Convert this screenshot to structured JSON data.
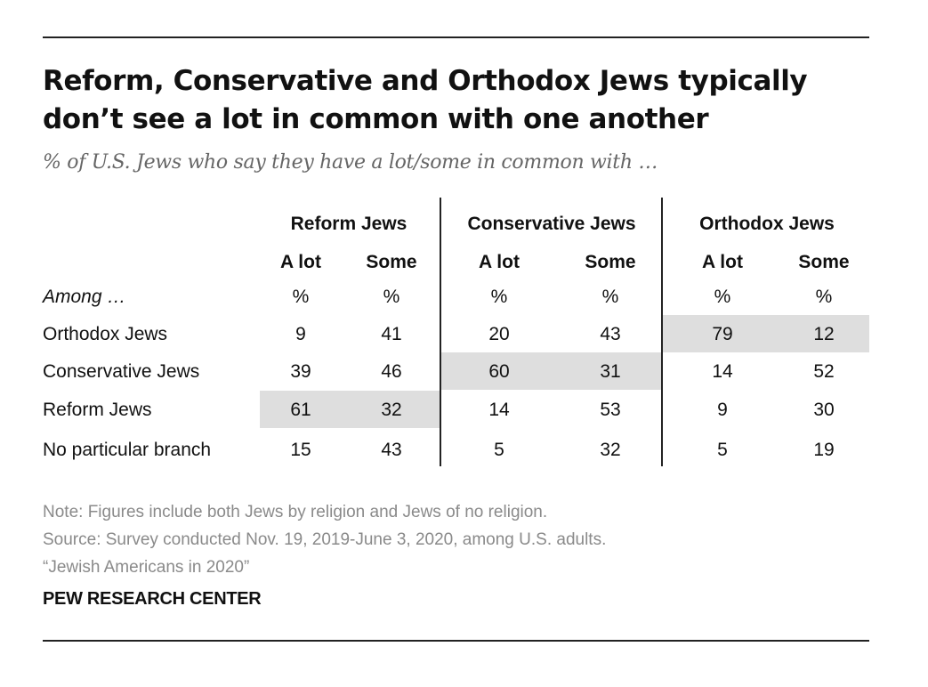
{
  "title": "Reform, Conservative and Orthodox Jews typically don’t see a lot in common with one another",
  "subtitle": "% of U.S. Jews who say they have a lot/some in common with …",
  "chart_data": {
    "type": "table",
    "column_groups": [
      "Reform Jews",
      "Conservative Jews",
      "Orthodox Jews"
    ],
    "subcolumns": [
      "A lot",
      "Some"
    ],
    "unit_label": "%",
    "row_header": "Among …",
    "rows": [
      {
        "label": "Orthodox Jews",
        "values": [
          9,
          41,
          20,
          43,
          79,
          12
        ],
        "highlight_group": 2
      },
      {
        "label": "Conservative Jews",
        "values": [
          39,
          46,
          60,
          31,
          14,
          52
        ],
        "highlight_group": 1
      },
      {
        "label": "Reform Jews",
        "values": [
          61,
          32,
          14,
          53,
          9,
          30
        ],
        "highlight_group": 0
      },
      {
        "label": "No particular branch",
        "values": [
          15,
          43,
          5,
          32,
          5,
          19
        ],
        "highlight_group": null
      }
    ],
    "highlight_color": "#dedede"
  },
  "notes": {
    "note": "Note: Figures include both Jews by religion and Jews of no religion.",
    "source": "Source: Survey conducted Nov. 19, 2019-June 3, 2020, among U.S. adults.",
    "report": "“Jewish Americans in 2020”"
  },
  "organization": "PEW RESEARCH CENTER"
}
